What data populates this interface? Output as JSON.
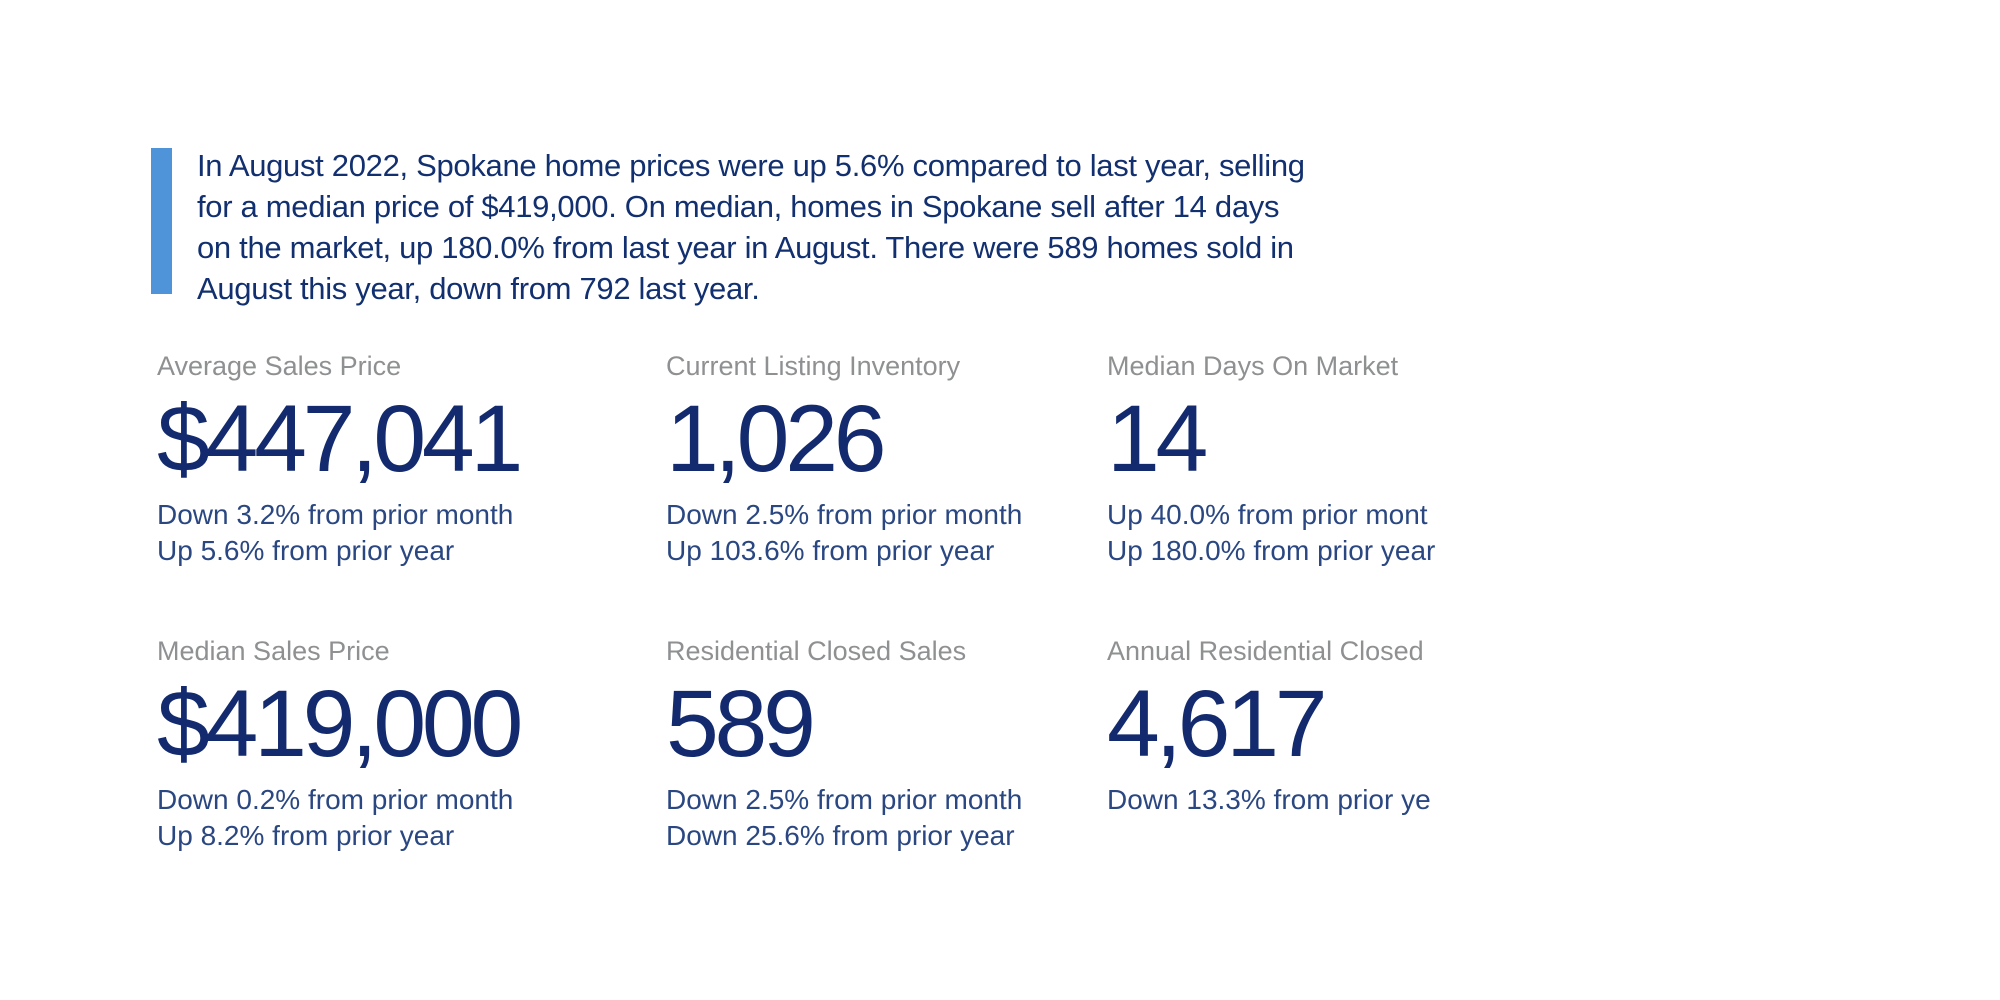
{
  "colors": {
    "background": "#ffffff",
    "accent_bar_blue": "#4f93d8",
    "navy_primary": "#132b6e",
    "navy_soft": "#2a4781",
    "label_gray": "#8e9092"
  },
  "summary": {
    "lines": [
      "In August 2022, Spokane home prices were up 5.6% compared to last year, selling",
      "for a median price of $419,000. On median, homes in Spokane sell after 14 days",
      "on the market, up 180.0% from last year in August. There were 589 homes sold in",
      "August this year, down from 792 last year."
    ]
  },
  "stats": [
    {
      "label": "Average Sales Price",
      "value": "$447,041",
      "changes": [
        "Down 3.2% from prior month",
        "Up 5.6% from prior year"
      ]
    },
    {
      "label": "Current Listing Inventory",
      "value": "1,026",
      "changes": [
        "Down 2.5% from prior month",
        "Up 103.6% from prior year"
      ]
    },
    {
      "label": "Median Days On Market",
      "value": "14",
      "changes": [
        "Up 40.0% from prior mont",
        "Up 180.0% from prior year"
      ]
    },
    {
      "label": "Median Sales Price",
      "value": "$419,000",
      "changes": [
        "Down 0.2% from prior month",
        "Up 8.2% from prior year"
      ]
    },
    {
      "label": "Residential Closed Sales",
      "value": "589",
      "changes": [
        "Down 2.5% from prior month",
        "Down 25.6% from prior year"
      ]
    },
    {
      "label": "Annual Residential Closed",
      "value": "4,617",
      "changes": [
        "Down 13.3% from prior ye"
      ]
    }
  ]
}
